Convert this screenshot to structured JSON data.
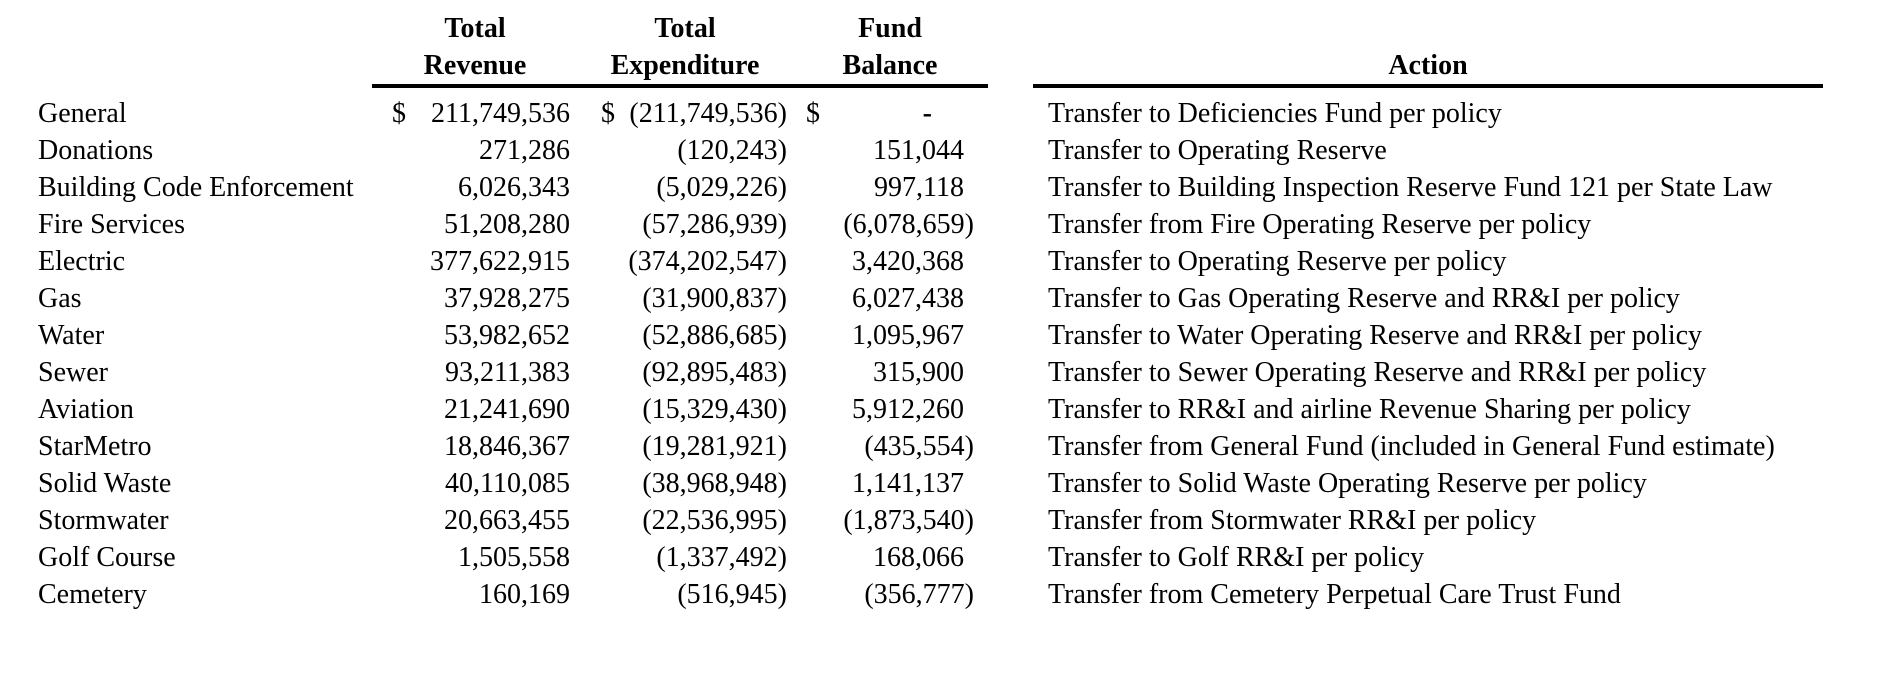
{
  "table": {
    "headers": {
      "revenue_line1": "Total",
      "revenue_line2": "Revenue",
      "expenditure_line1": "Total",
      "expenditure_line2": "Expenditure",
      "balance_line1": "Fund",
      "balance_line2": "Balance",
      "action": "Action"
    },
    "currency_symbol": "$",
    "rows": [
      {
        "fund": "General",
        "revenue": "211,749,536",
        "expenditure": "(211,749,536)",
        "balance": "-",
        "currency": true,
        "action": "Transfer to Deficiencies Fund per policy"
      },
      {
        "fund": "Donations",
        "revenue": "271,286",
        "expenditure": "(120,243)",
        "balance": "151,044",
        "currency": false,
        "action": "Transfer to Operating Reserve"
      },
      {
        "fund": "Building Code Enforcement",
        "revenue": "6,026,343",
        "expenditure": "(5,029,226)",
        "balance": "997,118",
        "currency": false,
        "action": "Transfer to Building Inspection Reserve Fund 121 per State Law"
      },
      {
        "fund": "Fire Services",
        "revenue": "51,208,280",
        "expenditure": "(57,286,939)",
        "balance": "(6,078,659)",
        "currency": false,
        "action": "Transfer from Fire Operating Reserve per policy"
      },
      {
        "fund": "Electric",
        "revenue": "377,622,915",
        "expenditure": "(374,202,547)",
        "balance": "3,420,368",
        "currency": false,
        "action": "Transfer to Operating Reserve per policy"
      },
      {
        "fund": "Gas",
        "revenue": "37,928,275",
        "expenditure": "(31,900,837)",
        "balance": "6,027,438",
        "currency": false,
        "action": "Transfer to Gas Operating Reserve and RR&I per policy"
      },
      {
        "fund": "Water",
        "revenue": "53,982,652",
        "expenditure": "(52,886,685)",
        "balance": "1,095,967",
        "currency": false,
        "action": "Transfer to Water Operating Reserve and RR&I per policy"
      },
      {
        "fund": "Sewer",
        "revenue": "93,211,383",
        "expenditure": "(92,895,483)",
        "balance": "315,900",
        "currency": false,
        "action": "Transfer to Sewer Operating Reserve and RR&I per policy"
      },
      {
        "fund": "Aviation",
        "revenue": "21,241,690",
        "expenditure": "(15,329,430)",
        "balance": "5,912,260",
        "currency": false,
        "action": "Transfer to RR&I and airline Revenue Sharing per policy"
      },
      {
        "fund": "StarMetro",
        "revenue": "18,846,367",
        "expenditure": "(19,281,921)",
        "balance": "(435,554)",
        "currency": false,
        "action": "Transfer from General Fund (included in General Fund estimate)"
      },
      {
        "fund": "Solid Waste",
        "revenue": "40,110,085",
        "expenditure": "(38,968,948)",
        "balance": "1,141,137",
        "currency": false,
        "action": "Transfer to Solid Waste Operating Reserve per policy"
      },
      {
        "fund": "Stormwater",
        "revenue": "20,663,455",
        "expenditure": "(22,536,995)",
        "balance": "(1,873,540)",
        "currency": false,
        "action": "Transfer from Stormwater RR&I per policy"
      },
      {
        "fund": "Golf Course",
        "revenue": "1,505,558",
        "expenditure": "(1,337,492)",
        "balance": "168,066",
        "currency": false,
        "action": "Transfer to Golf RR&I per policy"
      },
      {
        "fund": "Cemetery",
        "revenue": "160,169",
        "expenditure": "(516,945)",
        "balance": "(356,777)",
        "currency": false,
        "action": "Transfer from Cemetery Perpetual Care Trust Fund"
      }
    ]
  }
}
